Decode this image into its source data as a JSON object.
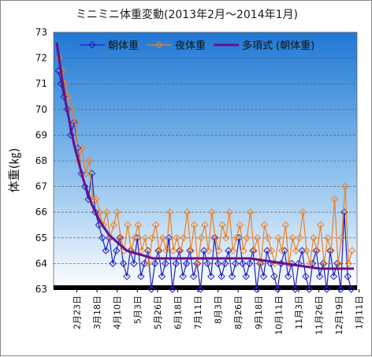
{
  "chart_data": {
    "type": "line",
    "title": "ミニミニ体重変動(2013年2月～2014年1月)",
    "ylabel": "体重(㎏)",
    "xlabel": "",
    "ylim": [
      63,
      73
    ],
    "yticks": [
      63,
      64,
      65,
      66,
      67,
      68,
      69,
      70,
      71,
      72,
      73
    ],
    "grid": true,
    "legend_position": "top",
    "x_ticks": [
      "2月23日",
      "3月18日",
      "4月10日",
      "5月3日",
      "5月26日",
      "6月18日",
      "7月11日",
      "8月3日",
      "8月26日",
      "9月18日",
      "10月11日",
      "11月3日",
      "11月26日",
      "12月19日",
      "1月11日"
    ],
    "x_range_days": [
      0,
      339
    ],
    "x_tick_days": [
      23,
      46,
      69,
      92,
      115,
      138,
      161,
      184,
      207,
      230,
      253,
      276,
      299,
      322,
      345
    ],
    "series": [
      {
        "name": "朝体重",
        "color": "#1f1fbf",
        "marker": "diamond",
        "points": [
          [
            2,
            71.5
          ],
          [
            5,
            71.0
          ],
          [
            8,
            70.5
          ],
          [
            12,
            70.0
          ],
          [
            16,
            69.0
          ],
          [
            20,
            69.5
          ],
          [
            24,
            68.5
          ],
          [
            28,
            67.5
          ],
          [
            32,
            67.0
          ],
          [
            36,
            66.5
          ],
          [
            40,
            67.5
          ],
          [
            44,
            66.0
          ],
          [
            48,
            65.5
          ],
          [
            52,
            65.0
          ],
          [
            56,
            64.5
          ],
          [
            60,
            65.0
          ],
          [
            64,
            64.0
          ],
          [
            68,
            64.5
          ],
          [
            72,
            65.0
          ],
          [
            76,
            64.0
          ],
          [
            80,
            63.5
          ],
          [
            84,
            64.5
          ],
          [
            88,
            64.0
          ],
          [
            92,
            65.0
          ],
          [
            96,
            63.5
          ],
          [
            100,
            64.0
          ],
          [
            104,
            64.5
          ],
          [
            108,
            63.0
          ],
          [
            112,
            64.0
          ],
          [
            116,
            64.5
          ],
          [
            120,
            63.5
          ],
          [
            124,
            64.0
          ],
          [
            128,
            65.0
          ],
          [
            132,
            63.0
          ],
          [
            136,
            64.0
          ],
          [
            140,
            64.5
          ],
          [
            144,
            63.5
          ],
          [
            148,
            64.0
          ],
          [
            152,
            64.5
          ],
          [
            156,
            63.5
          ],
          [
            160,
            64.0
          ],
          [
            164,
            63.0
          ],
          [
            168,
            64.5
          ],
          [
            172,
            64.0
          ],
          [
            176,
            63.5
          ],
          [
            180,
            65.0
          ],
          [
            184,
            64.0
          ],
          [
            188,
            63.5
          ],
          [
            192,
            64.0
          ],
          [
            196,
            64.5
          ],
          [
            200,
            63.5
          ],
          [
            204,
            64.0
          ],
          [
            208,
            65.0
          ],
          [
            212,
            64.0
          ],
          [
            216,
            63.5
          ],
          [
            220,
            64.0
          ],
          [
            224,
            64.5
          ],
          [
            228,
            63.0
          ],
          [
            232,
            64.0
          ],
          [
            236,
            63.5
          ],
          [
            240,
            64.5
          ],
          [
            244,
            64.0
          ],
          [
            248,
            63.5
          ],
          [
            252,
            63.0
          ],
          [
            256,
            64.0
          ],
          [
            260,
            64.5
          ],
          [
            264,
            63.5
          ],
          [
            268,
            64.0
          ],
          [
            272,
            63.0
          ],
          [
            276,
            64.0
          ],
          [
            280,
            64.5
          ],
          [
            284,
            63.5
          ],
          [
            288,
            63.0
          ],
          [
            292,
            64.0
          ],
          [
            296,
            64.5
          ],
          [
            300,
            63.5
          ],
          [
            304,
            64.0
          ],
          [
            308,
            63.0
          ],
          [
            312,
            64.5
          ],
          [
            316,
            63.5
          ],
          [
            320,
            64.0
          ],
          [
            324,
            63.0
          ],
          [
            328,
            66.0
          ],
          [
            332,
            63.5
          ],
          [
            336,
            63.0
          ]
        ]
      },
      {
        "name": "夜体重",
        "color": "#f08020",
        "marker": "diamond",
        "points": [
          [
            3,
            72.0
          ],
          [
            6,
            71.5
          ],
          [
            9,
            71.0
          ],
          [
            13,
            70.5
          ],
          [
            17,
            70.0
          ],
          [
            21,
            69.5
          ],
          [
            25,
            68.0
          ],
          [
            29,
            68.5
          ],
          [
            33,
            67.5
          ],
          [
            37,
            68.0
          ],
          [
            41,
            66.5
          ],
          [
            45,
            66.5
          ],
          [
            49,
            66.0
          ],
          [
            53,
            65.5
          ],
          [
            57,
            66.0
          ],
          [
            61,
            65.0
          ],
          [
            65,
            65.5
          ],
          [
            69,
            66.0
          ],
          [
            73,
            65.0
          ],
          [
            77,
            64.5
          ],
          [
            81,
            65.5
          ],
          [
            85,
            64.5
          ],
          [
            89,
            65.0
          ],
          [
            93,
            65.5
          ],
          [
            97,
            64.5
          ],
          [
            101,
            65.0
          ],
          [
            105,
            64.0
          ],
          [
            109,
            65.0
          ],
          [
            113,
            65.5
          ],
          [
            117,
            64.5
          ],
          [
            121,
            65.0
          ],
          [
            125,
            64.5
          ],
          [
            129,
            66.0
          ],
          [
            133,
            64.5
          ],
          [
            137,
            65.0
          ],
          [
            141,
            64.5
          ],
          [
            145,
            65.0
          ],
          [
            149,
            66.0
          ],
          [
            153,
            64.5
          ],
          [
            157,
            65.5
          ],
          [
            161,
            64.0
          ],
          [
            165,
            65.0
          ],
          [
            169,
            65.5
          ],
          [
            173,
            64.5
          ],
          [
            177,
            66.0
          ],
          [
            181,
            65.0
          ],
          [
            185,
            64.5
          ],
          [
            189,
            65.5
          ],
          [
            193,
            65.0
          ],
          [
            197,
            66.0
          ],
          [
            201,
            64.5
          ],
          [
            205,
            65.0
          ],
          [
            209,
            65.5
          ],
          [
            213,
            64.5
          ],
          [
            217,
            65.0
          ],
          [
            221,
            66.0
          ],
          [
            225,
            64.5
          ],
          [
            229,
            65.0
          ],
          [
            233,
            64.0
          ],
          [
            237,
            65.5
          ],
          [
            241,
            65.0
          ],
          [
            245,
            64.5
          ],
          [
            249,
            64.0
          ],
          [
            253,
            65.0
          ],
          [
            257,
            64.5
          ],
          [
            261,
            65.5
          ],
          [
            265,
            64.0
          ],
          [
            269,
            65.0
          ],
          [
            273,
            64.5
          ],
          [
            277,
            65.0
          ],
          [
            281,
            66.0
          ],
          [
            285,
            64.5
          ],
          [
            289,
            64.0
          ],
          [
            293,
            65.0
          ],
          [
            297,
            64.5
          ],
          [
            301,
            65.5
          ],
          [
            305,
            64.0
          ],
          [
            309,
            65.0
          ],
          [
            313,
            64.5
          ],
          [
            317,
            66.5
          ],
          [
            321,
            64.0
          ],
          [
            325,
            65.0
          ],
          [
            329,
            67.0
          ],
          [
            333,
            64.0
          ],
          [
            337,
            64.5
          ]
        ]
      },
      {
        "name": "多項式 (朝体重)",
        "color": "#6a0f8e",
        "marker": "none",
        "points": [
          [
            0,
            72.6
          ],
          [
            10,
            70.3
          ],
          [
            20,
            68.6
          ],
          [
            30,
            67.3
          ],
          [
            40,
            66.3
          ],
          [
            50,
            65.6
          ],
          [
            60,
            65.1
          ],
          [
            70,
            64.8
          ],
          [
            80,
            64.5
          ],
          [
            90,
            64.4
          ],
          [
            100,
            64.3
          ],
          [
            110,
            64.2
          ],
          [
            120,
            64.2
          ],
          [
            140,
            64.2
          ],
          [
            160,
            64.2
          ],
          [
            180,
            64.2
          ],
          [
            200,
            64.2
          ],
          [
            220,
            64.2
          ],
          [
            240,
            64.1
          ],
          [
            260,
            64.0
          ],
          [
            280,
            63.9
          ],
          [
            300,
            63.8
          ],
          [
            320,
            63.8
          ],
          [
            339,
            63.8
          ]
        ]
      }
    ]
  }
}
